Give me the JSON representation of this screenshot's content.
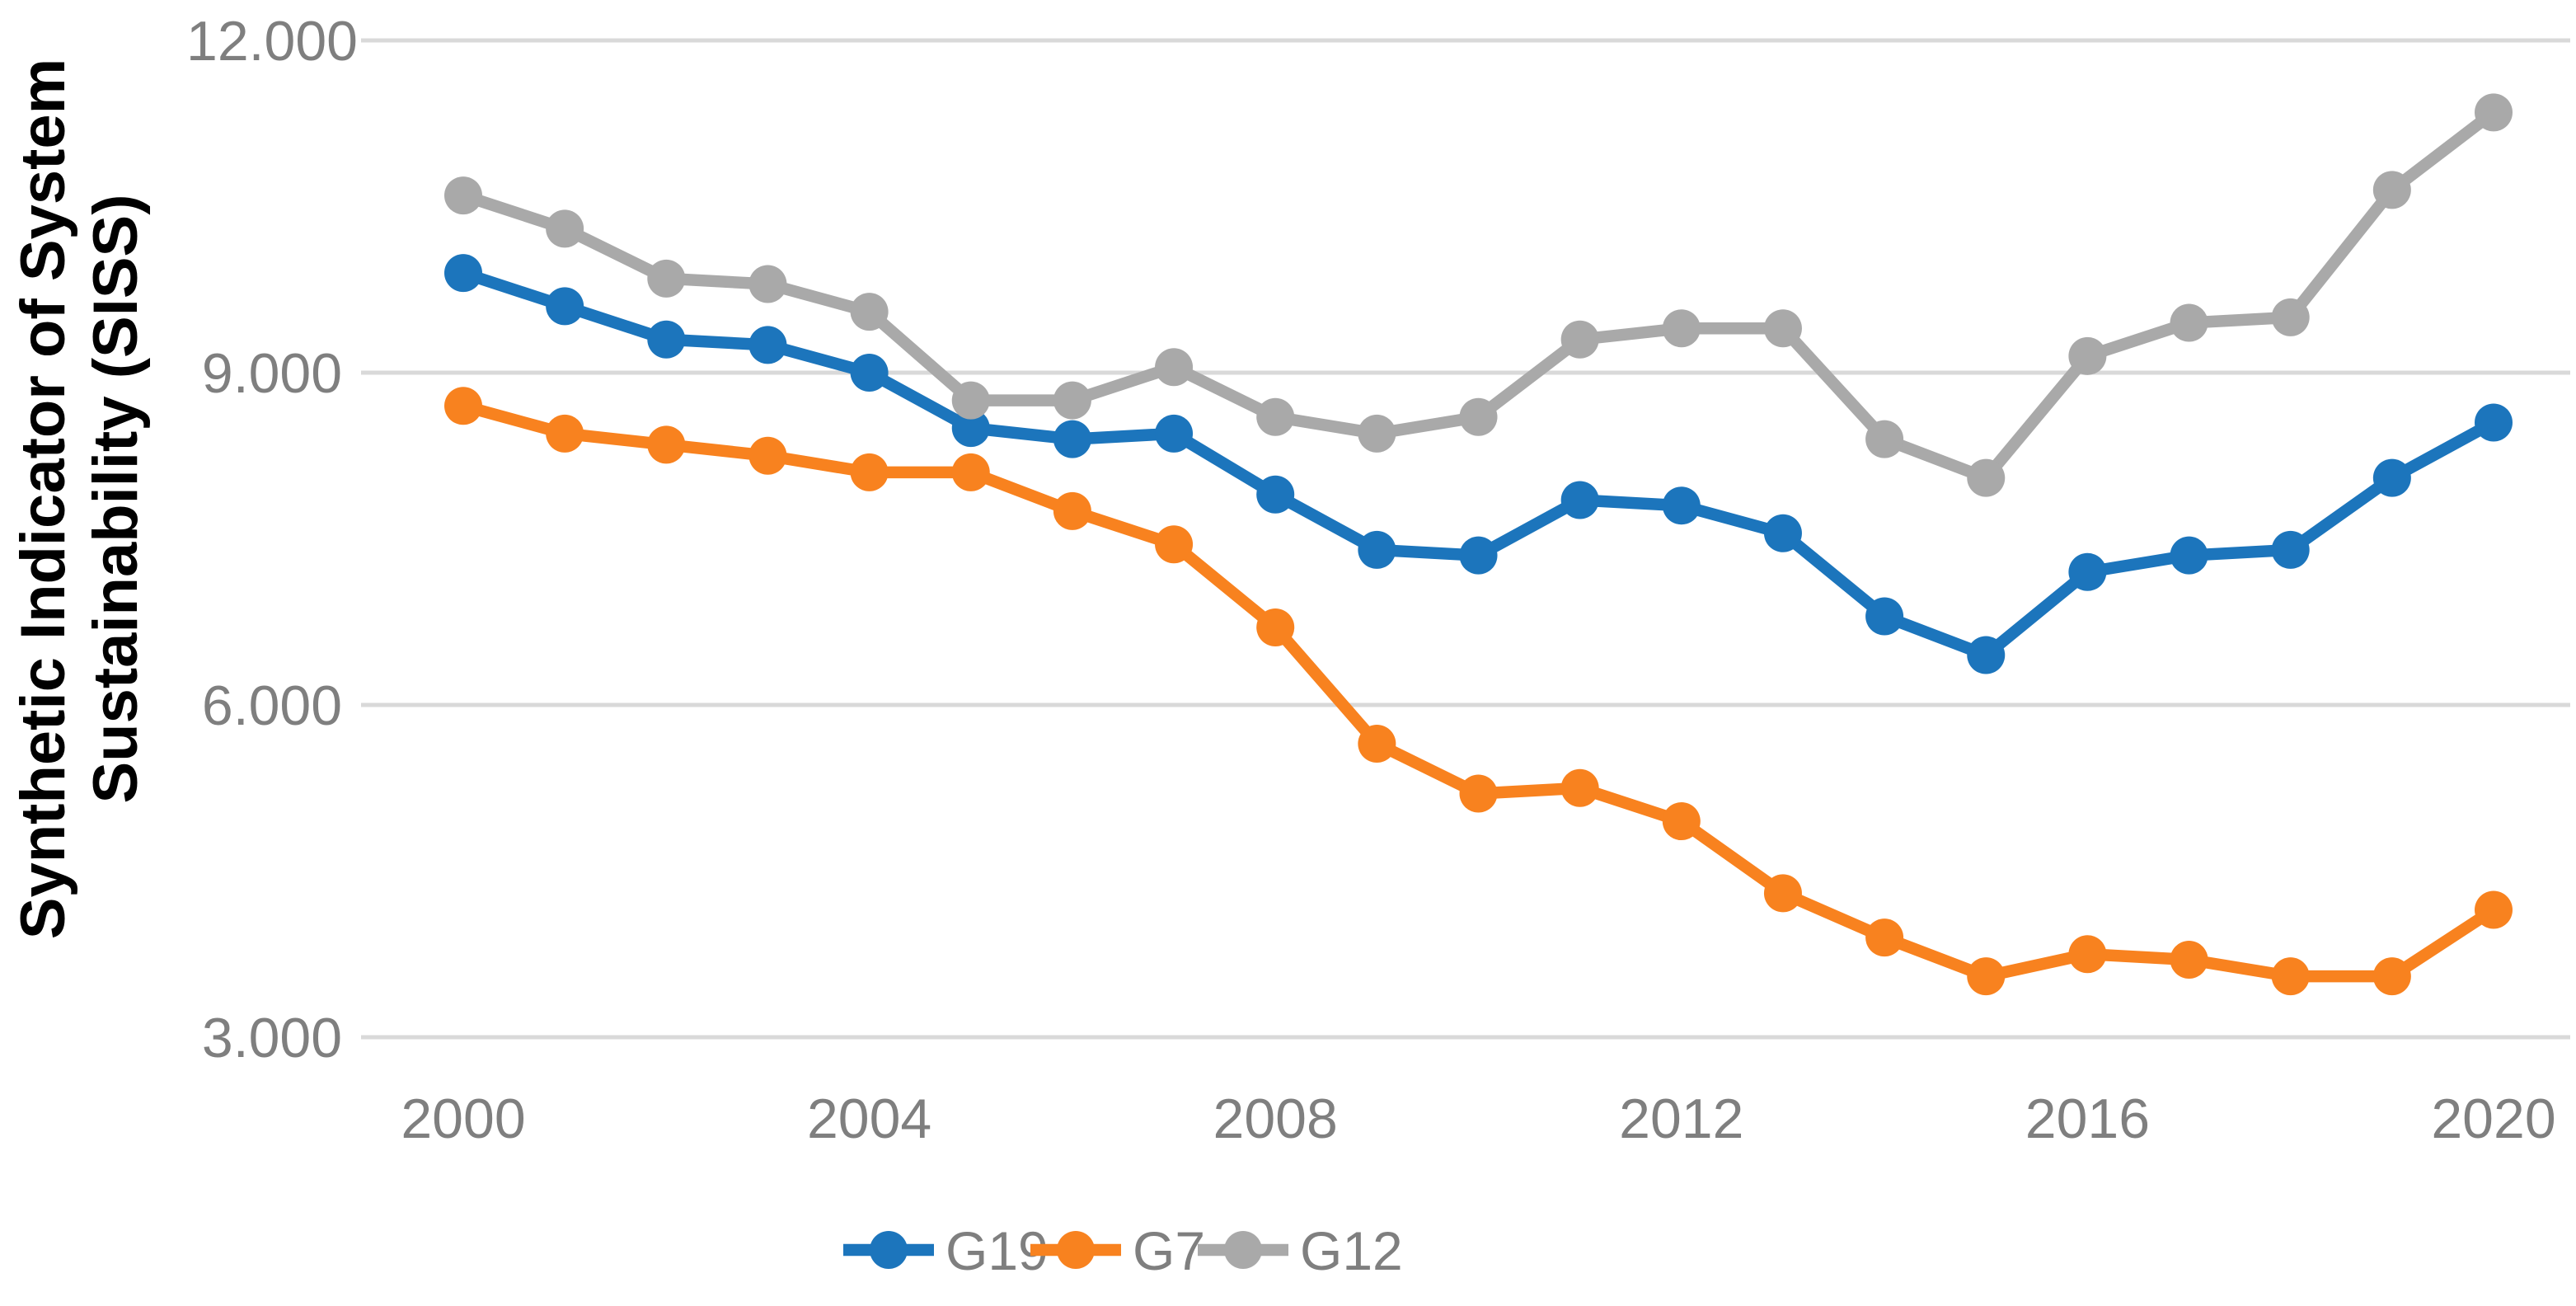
{
  "chart_data": {
    "type": "line",
    "title": "",
    "ylabel_lines": [
      "Synthetic  Indicator of System",
      "Sustainability (SISS)"
    ],
    "ylabel": "Synthetic Indicator of System Sustainability (SISS)",
    "xlabel": "",
    "x": [
      2000,
      2001,
      2002,
      2003,
      2004,
      2005,
      2006,
      2007,
      2008,
      2009,
      2010,
      2011,
      2012,
      2013,
      2014,
      2015,
      2016,
      2017,
      2018,
      2019,
      2020
    ],
    "x_tick_years": [
      2000,
      2004,
      2008,
      2012,
      2016,
      2020
    ],
    "x_tick_labels": [
      "2000",
      "2004",
      "2008",
      "2012",
      "2016",
      "2020"
    ],
    "y_tick_values": [
      3000,
      6000,
      9000,
      12000
    ],
    "y_tick_labels": [
      "3.000",
      "6.000",
      "9.000",
      "12.000"
    ],
    "ylim": [
      3000,
      12000
    ],
    "xlim": [
      2000,
      2020
    ],
    "grid": "horizontal",
    "legend_position": "bottom",
    "axis_text_color": "#7F7F7F",
    "grid_color": "#D9D9D9",
    "title_color": "#000000",
    "series": [
      {
        "name": "G19",
        "color": "#1C75BC",
        "values": [
          9900,
          9600,
          9300,
          9250,
          9000,
          8500,
          8400,
          8450,
          7900,
          7400,
          7350,
          7850,
          7800,
          7550,
          6800,
          6450,
          7200,
          7350,
          7400,
          8050,
          8550
        ]
      },
      {
        "name": "G7",
        "color": "#F8821F",
        "values": [
          8700,
          8450,
          8350,
          8250,
          8100,
          8100,
          7750,
          7450,
          6700,
          5650,
          5200,
          5250,
          4950,
          4300,
          3900,
          3550,
          3750,
          3700,
          3550,
          3550,
          4150
        ]
      },
      {
        "name": "G12",
        "color": "#A9A9A9",
        "values": [
          10600,
          10300,
          9850,
          9800,
          9550,
          8750,
          8750,
          9050,
          8600,
          8450,
          8600,
          9300,
          9400,
          9400,
          8400,
          8050,
          9150,
          9450,
          9500,
          10650,
          11350
        ]
      }
    ],
    "legend": [
      {
        "label": "G19",
        "color": "#1C75BC"
      },
      {
        "label": "G7",
        "color": "#F8821F"
      },
      {
        "label": "G12",
        "color": "#A9A9A9"
      }
    ]
  }
}
